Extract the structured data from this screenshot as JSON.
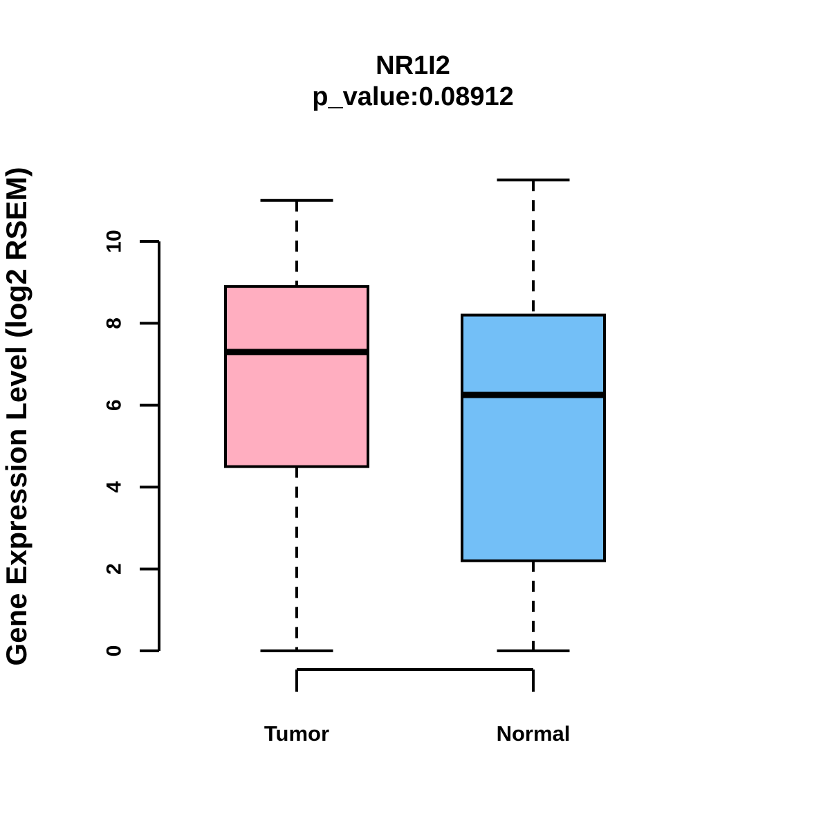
{
  "chart_data": {
    "type": "boxplot",
    "title": "NR1I2",
    "subtitle": "p_value:0.08912",
    "p_value": "0.08912",
    "ylabel": "Gene Expression Level (log2 RSEM)",
    "xlabel": "",
    "ylim": [
      0,
      11.6
    ],
    "yticks": [
      0,
      2,
      4,
      6,
      8,
      10
    ],
    "grid": false,
    "legend": "none",
    "groups": [
      {
        "label": "Tumor",
        "color": "#FFAEC0",
        "whisker_low": 0,
        "q1": 4.5,
        "median": 7.3,
        "q3": 8.9,
        "whisker_high": 11.0
      },
      {
        "label": "Normal",
        "color": "#73BFF7",
        "whisker_low": 0,
        "q1": 2.2,
        "median": 6.25,
        "q3": 8.2,
        "whisker_high": 11.5
      }
    ],
    "colors": {
      "box_border": "#000000",
      "median_line": "#000000",
      "axis": "#000000",
      "text": "#000000",
      "background": "#ffffff"
    }
  }
}
